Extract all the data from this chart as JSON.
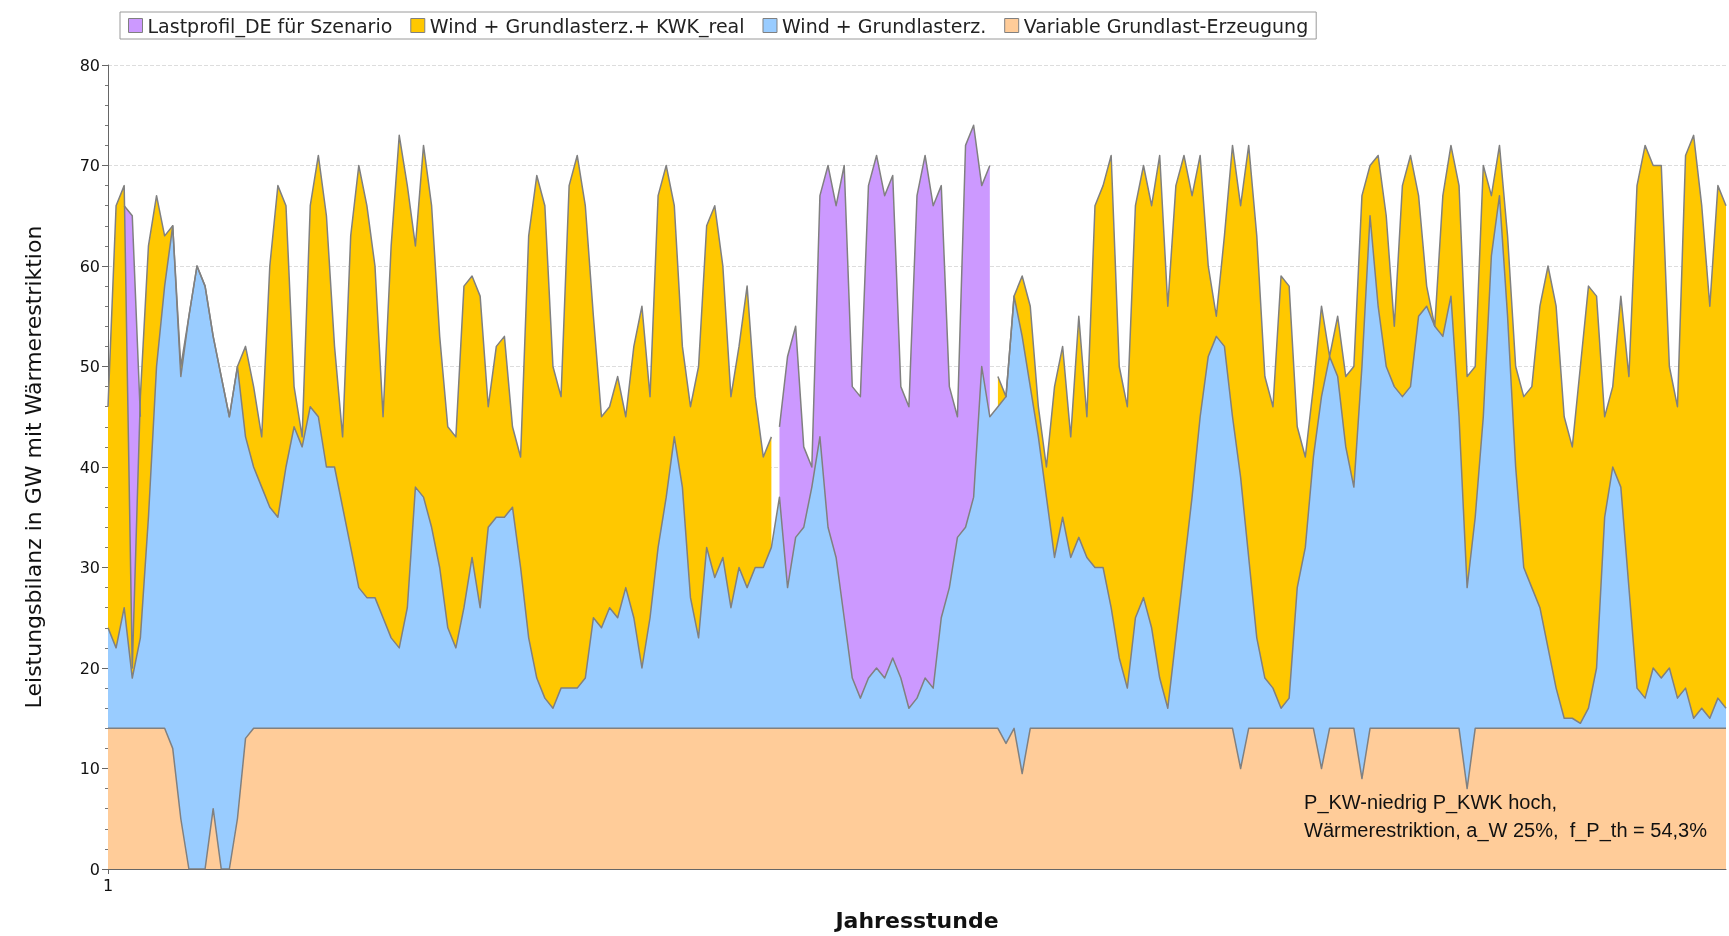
{
  "chart_data": {
    "type": "area",
    "xlabel": "Jahresstunde",
    "ylabel": "Leistungsbilanz in GW mit Wärmerestriktion",
    "annotations": [
      "P_KW-niedrig P_KWK hoch,\nWärmerestriktion, a_W 25%,  f_P_th = 54,3%"
    ],
    "categories": [
      "1",
      null,
      null,
      null,
      null,
      null,
      null,
      null,
      null,
      null,
      null,
      null,
      null,
      null,
      null,
      null,
      null,
      null,
      null,
      null,
      null,
      null,
      null,
      null,
      null,
      null,
      null,
      null,
      null,
      null,
      null,
      null,
      null,
      null,
      null,
      null,
      null,
      null,
      null,
      null,
      null,
      null,
      null,
      null,
      null,
      null,
      null,
      null,
      null,
      null,
      null,
      null,
      null,
      null,
      null,
      null,
      null,
      null,
      null,
      null,
      null,
      null,
      null,
      null,
      null,
      null,
      null,
      null,
      null,
      null,
      null,
      null,
      null,
      null,
      null,
      null,
      null,
      null,
      null,
      null,
      null,
      null,
      null,
      null,
      null,
      null,
      null,
      null,
      null,
      null,
      null,
      null,
      null,
      null,
      null,
      null,
      null,
      null,
      null,
      null,
      null,
      null,
      null,
      null,
      null,
      null,
      null,
      null,
      null,
      null,
      null,
      null,
      null,
      null,
      null,
      null,
      null,
      null,
      null,
      null,
      null,
      null,
      null,
      null,
      null,
      null,
      null,
      null,
      null,
      null,
      null,
      null,
      null,
      null,
      null,
      null,
      null,
      null,
      null,
      null,
      null,
      null,
      null,
      null,
      null,
      null,
      null,
      null,
      null,
      null,
      null,
      null,
      null,
      null,
      null,
      null,
      null,
      null,
      null,
      null,
      null,
      null,
      null,
      null,
      null,
      null,
      null,
      null,
      null,
      null,
      null,
      null,
      null,
      null,
      null,
      null,
      null,
      null,
      null,
      null,
      null,
      null,
      null,
      null,
      null,
      null,
      null,
      null,
      null,
      null,
      null,
      null,
      null,
      null,
      null,
      null,
      null,
      null,
      null,
      null,
      null
    ],
    "series": [
      {
        "name": "Lastprofil_DE für Szenario",
        "color": "#cc99ff",
        "values": [
          null,
          null,
          66,
          65,
          45,
          null,
          null,
          null,
          null,
          null,
          null,
          null,
          null,
          null,
          null,
          null,
          null,
          null,
          null,
          null,
          null,
          null,
          null,
          null,
          null,
          null,
          null,
          null,
          null,
          null,
          null,
          null,
          null,
          null,
          null,
          null,
          null,
          null,
          null,
          null,
          null,
          null,
          null,
          null,
          null,
          null,
          null,
          null,
          null,
          null,
          null,
          null,
          null,
          null,
          null,
          null,
          null,
          null,
          null,
          null,
          null,
          null,
          null,
          null,
          null,
          null,
          null,
          null,
          null,
          null,
          null,
          null,
          null,
          null,
          null,
          null,
          null,
          null,
          null,
          null,
          null,
          null,
          null,
          44,
          51,
          54,
          42,
          40,
          67,
          70,
          66,
          70,
          48,
          47,
          68,
          71,
          67,
          69,
          48,
          46,
          67,
          71,
          66,
          68,
          48,
          45,
          72,
          74,
          68,
          70,
          null,
          null,
          null,
          null,
          null,
          null,
          null,
          null,
          null,
          null,
          null,
          null,
          null,
          null,
          null,
          null,
          null,
          null,
          null,
          null,
          null,
          null,
          null,
          null,
          null,
          null,
          null,
          null,
          null,
          null,
          null,
          null,
          null,
          null,
          null,
          null,
          null,
          null,
          null,
          null,
          null,
          null,
          null,
          null,
          null,
          null,
          null,
          null,
          null,
          null,
          null,
          null,
          null,
          null,
          null,
          null,
          null,
          null,
          null,
          null,
          null,
          null,
          null,
          null,
          null,
          null,
          null,
          null,
          null,
          null,
          null,
          null,
          null,
          null,
          null,
          null,
          null,
          null,
          null,
          null,
          null,
          null,
          null,
          null,
          null,
          null,
          null,
          null,
          null,
          null,
          null
        ]
      },
      {
        "name": "Wind + Grundlasterz.+ KWK_real",
        "color": "#ffc800",
        "values": [
          46,
          66,
          68,
          20,
          47,
          62,
          67,
          63,
          64,
          50,
          55,
          60,
          58,
          53,
          49,
          45,
          50,
          52,
          48,
          43,
          60,
          68,
          66,
          48,
          43,
          66,
          71,
          65,
          52,
          43,
          63,
          70,
          66,
          60,
          45,
          62,
          73,
          68,
          62,
          72,
          66,
          53,
          44,
          43,
          58,
          59,
          57,
          46,
          52,
          53,
          44,
          41,
          63,
          69,
          66,
          50,
          47,
          68,
          71,
          66,
          55,
          45,
          46,
          49,
          45,
          52,
          56,
          47,
          67,
          70,
          66,
          52,
          46,
          50,
          64,
          66,
          60,
          47,
          52,
          58,
          47,
          41,
          43,
          null,
          null,
          null,
          null,
          null,
          null,
          null,
          null,
          null,
          null,
          null,
          null,
          null,
          null,
          null,
          null,
          null,
          null,
          null,
          null,
          null,
          null,
          null,
          null,
          null,
          null,
          null,
          49,
          47,
          57,
          59,
          56,
          46,
          40,
          48,
          52,
          43,
          55,
          45,
          66,
          68,
          71,
          50,
          46,
          66,
          70,
          66,
          71,
          56,
          68,
          71,
          67,
          71,
          60,
          55,
          63,
          72,
          66,
          72,
          63,
          49,
          46,
          59,
          58,
          44,
          41,
          48,
          56,
          51,
          55,
          49,
          50,
          67,
          70,
          71,
          65,
          54,
          68,
          71,
          67,
          58,
          54,
          67,
          72,
          68,
          49,
          50,
          70,
          67,
          72,
          63,
          50,
          47,
          48,
          56,
          60,
          56,
          45,
          42,
          50,
          58,
          57,
          45,
          48,
          57,
          49,
          68,
          72,
          70,
          70,
          50,
          46,
          71,
          73,
          66,
          56,
          68,
          66
        ]
      },
      {
        "name": "Wind + Grundlasterz.",
        "color": "#99ccff",
        "values": [
          24,
          22,
          26,
          19,
          23,
          35,
          50,
          58,
          64,
          49,
          55,
          60,
          58,
          53,
          49,
          45,
          50,
          43,
          40,
          38,
          36,
          35,
          40,
          44,
          42,
          46,
          45,
          40,
          40,
          36,
          32,
          28,
          27,
          27,
          25,
          23,
          22,
          26,
          38,
          37,
          34,
          30,
          24,
          22,
          26,
          31,
          26,
          34,
          35,
          35,
          36,
          30,
          23,
          19,
          17,
          16,
          18,
          18,
          18,
          19,
          25,
          24,
          26,
          25,
          28,
          25,
          20,
          25,
          32,
          37,
          43,
          38,
          27,
          23,
          32,
          29,
          31,
          26,
          30,
          28,
          30,
          30,
          32,
          37,
          28,
          33,
          34,
          38,
          43,
          34,
          31,
          25,
          19,
          17,
          19,
          20,
          19,
          21,
          19,
          16,
          17,
          19,
          18,
          25,
          28,
          33,
          34,
          37,
          50,
          45,
          46,
          47,
          57,
          53,
          48,
          43,
          37,
          31,
          35,
          31,
          33,
          31,
          30,
          30,
          26,
          21,
          18,
          25,
          27,
          24,
          19,
          16,
          23,
          30,
          37,
          45,
          51,
          53,
          52,
          45,
          39,
          31,
          23,
          19,
          18,
          16,
          17,
          28,
          32,
          41,
          47,
          51,
          49,
          42,
          38,
          50,
          65,
          56,
          50,
          48,
          47,
          48,
          55,
          56,
          54,
          53,
          57,
          45,
          28,
          35,
          45,
          61,
          67,
          55,
          40,
          30,
          28,
          26,
          22,
          18,
          15,
          15,
          14.5,
          16,
          20,
          35,
          40,
          38,
          28,
          18,
          17,
          20,
          19,
          20,
          17,
          18,
          15,
          16,
          15,
          17,
          16
        ]
      },
      {
        "name": "Variable Grundlast-Erzeugung",
        "color": "#ffcc99",
        "values": [
          14,
          14,
          14,
          14,
          14,
          14,
          14,
          14,
          12,
          5,
          0,
          0,
          0,
          6,
          0,
          0,
          5,
          13,
          14,
          14,
          14,
          14,
          14,
          14,
          14,
          14,
          14,
          14,
          14,
          14,
          14,
          14,
          14,
          14,
          14,
          14,
          14,
          14,
          14,
          14,
          14,
          14,
          14,
          14,
          14,
          14,
          14,
          14,
          14,
          14,
          14,
          14,
          14,
          14,
          14,
          14,
          14,
          14,
          14,
          14,
          14,
          14,
          14,
          14,
          14,
          14,
          14,
          14,
          14,
          14,
          14,
          14,
          14,
          14,
          14,
          14,
          14,
          14,
          14,
          14,
          14,
          14,
          14,
          14,
          14,
          14,
          14,
          14,
          14,
          14,
          14,
          14,
          14,
          14,
          14,
          14,
          14,
          14,
          14,
          14,
          14,
          14,
          14,
          14,
          14,
          14,
          14,
          14,
          14,
          14,
          14,
          12.5,
          14,
          9.5,
          14,
          14,
          14,
          14,
          14,
          14,
          14,
          14,
          14,
          14,
          14,
          14,
          14,
          14,
          14,
          14,
          14,
          14,
          14,
          14,
          14,
          14,
          14,
          14,
          14,
          14,
          10,
          14,
          14,
          14,
          14,
          14,
          14,
          14,
          14,
          14,
          10,
          14,
          14,
          14,
          14,
          9,
          14,
          14,
          14,
          14,
          14,
          14,
          14,
          14,
          14,
          14,
          14,
          14,
          8,
          14,
          14,
          14,
          14,
          14,
          14,
          14,
          14,
          14,
          14,
          14,
          14,
          14,
          14,
          14,
          14,
          14,
          14,
          14,
          14,
          14,
          14,
          14,
          14,
          14,
          14,
          14,
          14,
          14,
          14,
          14,
          14
        ]
      }
    ],
    "ylim": [
      0,
      80
    ],
    "yticks": [
      0,
      10,
      20,
      30,
      40,
      50,
      60,
      70,
      80
    ],
    "grid": "y",
    "legend": "top"
  }
}
